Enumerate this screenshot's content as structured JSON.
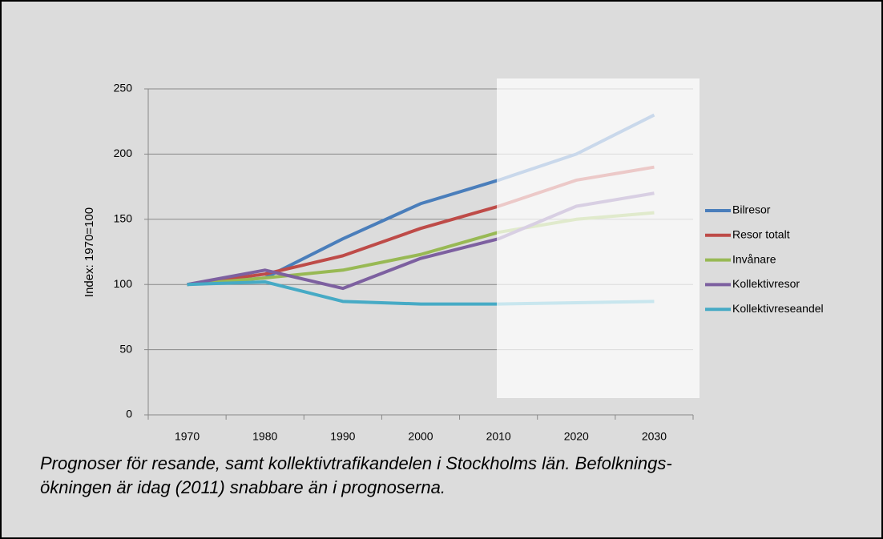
{
  "chart_data": {
    "type": "line",
    "categories": [
      "1970",
      "1980",
      "1990",
      "2000",
      "2010",
      "2020",
      "2030"
    ],
    "series": [
      {
        "name": "Bilresor",
        "color": "#4a7ebb",
        "values": [
          100,
          105,
          135,
          162,
          180,
          200,
          230
        ]
      },
      {
        "name": "Resor totalt",
        "color": "#be4b48",
        "values": [
          100,
          108,
          122,
          143,
          160,
          180,
          190
        ]
      },
      {
        "name": "Invånare",
        "color": "#98b954",
        "values": [
          100,
          105,
          111,
          123,
          140,
          150,
          155
        ]
      },
      {
        "name": "Kollektivresor",
        "color": "#7d60a0",
        "values": [
          100,
          111,
          97,
          120,
          135,
          160,
          170
        ]
      },
      {
        "name": "Kollektivreseandel",
        "color": "#46aac5",
        "values": [
          100,
          102,
          87,
          85,
          85,
          86,
          87
        ]
      }
    ],
    "y_label": "Index: 1970=100",
    "ylim": [
      0,
      250
    ],
    "yticks": [
      0,
      50,
      100,
      150,
      200,
      250
    ],
    "grid": true,
    "legend": "right",
    "caption": [
      "Prognoser för resande, samt kollektivtrafikandelen i Stockholms län. Befolknings-",
      "ökningen är idag (2011) snabbare än i prognoserna."
    ]
  }
}
